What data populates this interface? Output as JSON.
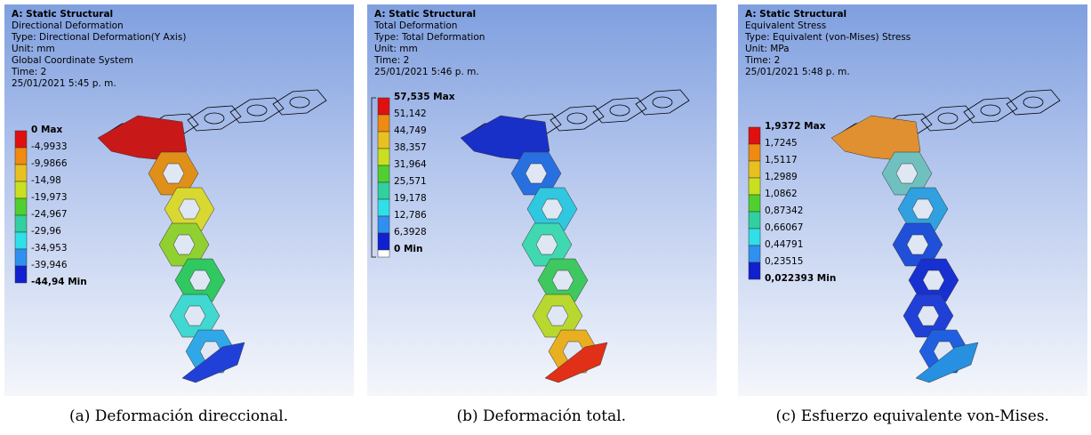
{
  "panels": [
    {
      "header": [
        "A: Static Structural",
        "Directional Deformation",
        "Type: Directional Deformation(Y Axis)",
        "Unit: mm",
        "Global Coordinate System",
        "Time: 2",
        "25/01/2021 5:45 p. m."
      ],
      "legend": [
        "0 Max",
        "-4,9933",
        "-9,9866",
        "-14,98",
        "-19,973",
        "-24,967",
        "-29,96",
        "-34,953",
        "-39,946",
        "-44,94 Min"
      ],
      "caption": "(a) Deformación direccional."
    },
    {
      "header": [
        "A: Static Structural",
        "Total Deformation",
        "Type: Total Deformation",
        "Unit: mm",
        "Time: 2",
        "25/01/2021 5:46 p. m."
      ],
      "legend": [
        "57,535 Max",
        "51,142",
        "44,749",
        "38,357",
        "31,964",
        "25,571",
        "19,178",
        "12,786",
        "6,3928",
        "0 Min"
      ],
      "caption": "(b) Deformación total."
    },
    {
      "header": [
        "A: Static Structural",
        "Equivalent Stress",
        "Type: Equivalent (von-Mises) Stress",
        "Unit: MPa",
        "Time: 2",
        "25/01/2021 5:48 p. m."
      ],
      "legend": [
        "1,9372 Max",
        "1,7245",
        "1,5117",
        "1,2989",
        "1,0862",
        "0,87342",
        "0,66067",
        "0,44791",
        "0,23515",
        "0,022393 Min"
      ],
      "caption": "(c) Esfuerzo equivalente von-Mises."
    }
  ]
}
